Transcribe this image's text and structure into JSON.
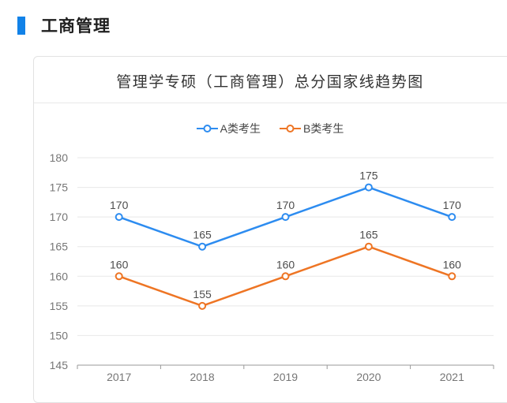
{
  "page": {
    "section_title": "工商管理",
    "accent_color": "#1182e8",
    "background": "#ffffff"
  },
  "card": {
    "title": "管理学专硕（工商管理）总分国家线趋势图",
    "border_color": "#e2e2e2"
  },
  "chart_data": {
    "type": "line",
    "title": "管理学专硕（工商管理）总分国家线趋势图",
    "categories": [
      "2017",
      "2018",
      "2019",
      "2020",
      "2021"
    ],
    "series": [
      {
        "name": "A类考生",
        "color": "#2d8cf0",
        "values": [
          170,
          165,
          170,
          175,
          170
        ]
      },
      {
        "name": "B类考生",
        "color": "#ee7524",
        "values": [
          160,
          155,
          160,
          165,
          160
        ]
      }
    ],
    "ylim": [
      145,
      180
    ],
    "ytick_step": 5,
    "grid": true,
    "legend_position": "top-center",
    "data_labels": true,
    "marker": "open-circle",
    "axis_color": "#999999",
    "grid_color": "#e8e8e8",
    "tick_label_color": "#767676",
    "data_label_color": "#4d4d4d"
  }
}
